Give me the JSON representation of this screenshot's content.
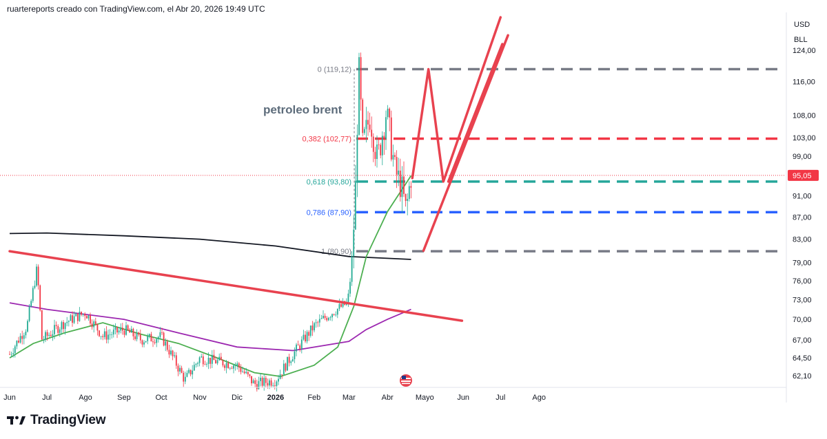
{
  "header": {
    "attribution": "ruartereports creado con TradingView.com, el Abr 20, 2026 19:49 UTC"
  },
  "footer": {
    "logo_text": "TradingView"
  },
  "colors": {
    "candle_up": "#22ab94",
    "candle_down": "#f23645",
    "annotation_red": "#e8424f",
    "price_badge": "#f23645",
    "ma_black": "#131722",
    "ma_purple": "#9c27b0",
    "ma_green": "#4caf50",
    "fib_grey": "#787b86",
    "fib_red": "#f23645",
    "fib_teal": "#26a69a",
    "fib_blue": "#2962ff"
  },
  "chart_data": {
    "type": "line",
    "symbol_title": "petroleo brent",
    "currency": "USD",
    "unit": "BLL",
    "last_price": "95,05",
    "y_axis": {
      "scale": "log",
      "ticks": [
        "124,00",
        "116,00",
        "108,00",
        "103,00",
        "99,00",
        "91,00",
        "87,00",
        "83,00",
        "79,00",
        "76,00",
        "73,00",
        "70,00",
        "67,00",
        "64,50",
        "62,10"
      ]
    },
    "x_axis": {
      "ticks": [
        "Jun",
        "Jul",
        "Ago",
        "Sep",
        "Oct",
        "Nov",
        "Dic",
        "2026",
        "Feb",
        "Mar",
        "Abr",
        "Mayo",
        "Jun",
        "Jul",
        "Ago"
      ]
    },
    "fibonacci": [
      {
        "ratio": "0",
        "price": 119.12,
        "label": "0 (119,12)",
        "color_key": "fib_grey"
      },
      {
        "ratio": "0.382",
        "price": 102.77,
        "label": "0,382 (102,77)",
        "color_key": "fib_red"
      },
      {
        "ratio": "0.618",
        "price": 93.8,
        "label": "0,618 (93,80)",
        "color_key": "fib_teal"
      },
      {
        "ratio": "0.786",
        "price": 87.9,
        "label": "0,786 (87,90)",
        "color_key": "fib_blue"
      },
      {
        "ratio": "1",
        "price": 80.9,
        "label": "1 (80,90)",
        "color_key": "fib_grey"
      }
    ],
    "price_series": [
      {
        "date": "2025-06-01",
        "price": 65.0
      },
      {
        "date": "2025-06-15",
        "price": 69.0
      },
      {
        "date": "2025-06-23",
        "price": 78.0
      },
      {
        "date": "2025-06-27",
        "price": 67.0
      },
      {
        "date": "2025-07-15",
        "price": 69.5
      },
      {
        "date": "2025-08-01",
        "price": 71.0
      },
      {
        "date": "2025-08-15",
        "price": 67.5
      },
      {
        "date": "2025-09-01",
        "price": 68.5
      },
      {
        "date": "2025-09-15",
        "price": 67.0
      },
      {
        "date": "2025-10-01",
        "price": 67.5
      },
      {
        "date": "2025-10-20",
        "price": 61.5
      },
      {
        "date": "2025-11-01",
        "price": 64.5
      },
      {
        "date": "2025-11-15",
        "price": 64.0
      },
      {
        "date": "2025-12-01",
        "price": 63.5
      },
      {
        "date": "2025-12-15",
        "price": 61.0
      },
      {
        "date": "2026-01-01",
        "price": 61.5
      },
      {
        "date": "2026-01-15",
        "price": 65.0
      },
      {
        "date": "2026-02-01",
        "price": 69.0
      },
      {
        "date": "2026-02-15",
        "price": 71.0
      },
      {
        "date": "2026-02-28",
        "price": 72.5
      },
      {
        "date": "2026-03-03",
        "price": 78.0
      },
      {
        "date": "2026-03-06",
        "price": 90.0
      },
      {
        "date": "2026-03-09",
        "price": 119.12
      },
      {
        "date": "2026-03-12",
        "price": 101.0
      },
      {
        "date": "2026-03-18",
        "price": 108.0
      },
      {
        "date": "2026-03-24",
        "price": 98.0
      },
      {
        "date": "2026-03-31",
        "price": 109.0
      },
      {
        "date": "2026-04-07",
        "price": 96.0
      },
      {
        "date": "2026-04-12",
        "price": 93.0
      },
      {
        "date": "2026-04-16",
        "price": 88.0
      },
      {
        "date": "2026-04-20",
        "price": 95.05
      }
    ],
    "moving_averages": [
      {
        "color_key": "ma_black",
        "points": [
          {
            "date": "2025-06-01",
            "price": 84.0
          },
          {
            "date": "2025-07-01",
            "price": 84.1
          },
          {
            "date": "2025-09-01",
            "price": 83.6
          },
          {
            "date": "2025-11-01",
            "price": 83.0
          },
          {
            "date": "2026-01-01",
            "price": 81.8
          },
          {
            "date": "2026-03-01",
            "price": 80.0
          },
          {
            "date": "2026-04-20",
            "price": 79.5
          }
        ]
      },
      {
        "color_key": "ma_purple",
        "points": [
          {
            "date": "2025-06-01",
            "price": 72.5
          },
          {
            "date": "2025-07-01",
            "price": 71.5
          },
          {
            "date": "2025-09-01",
            "price": 70.0
          },
          {
            "date": "2025-10-15",
            "price": 68.0
          },
          {
            "date": "2025-12-01",
            "price": 66.0
          },
          {
            "date": "2026-01-15",
            "price": 65.5
          },
          {
            "date": "2026-03-01",
            "price": 66.8
          },
          {
            "date": "2026-03-15",
            "price": 68.5
          },
          {
            "date": "2026-04-01",
            "price": 70.0
          },
          {
            "date": "2026-04-20",
            "price": 71.5
          }
        ]
      },
      {
        "color_key": "ma_green",
        "points": [
          {
            "date": "2025-06-01",
            "price": 64.5
          },
          {
            "date": "2025-06-20",
            "price": 66.5
          },
          {
            "date": "2025-07-15",
            "price": 68.0
          },
          {
            "date": "2025-08-15",
            "price": 69.5
          },
          {
            "date": "2025-09-15",
            "price": 67.8
          },
          {
            "date": "2025-10-15",
            "price": 66.5
          },
          {
            "date": "2025-11-15",
            "price": 64.5
          },
          {
            "date": "2025-12-15",
            "price": 62.5
          },
          {
            "date": "2026-01-05",
            "price": 62.0
          },
          {
            "date": "2026-02-01",
            "price": 63.5
          },
          {
            "date": "2026-02-20",
            "price": 66.0
          },
          {
            "date": "2026-03-05",
            "price": 72.0
          },
          {
            "date": "2026-03-15",
            "price": 80.0
          },
          {
            "date": "2026-04-01",
            "price": 88.0
          },
          {
            "date": "2026-04-20",
            "price": 95.0
          }
        ]
      }
    ],
    "annotations": {
      "trendline": [
        {
          "date": "2025-06-01",
          "price": 80.9
        },
        {
          "date": "2026-05-31",
          "price": 69.8
        }
      ],
      "zigzag": [
        {
          "date": "2026-04-21",
          "price": 94.5
        },
        {
          "date": "2026-05-04",
          "price": 119.12
        },
        {
          "date": "2026-05-16",
          "price": 93.8
        },
        {
          "date": "2026-07-01",
          "price": 133.0
        }
      ],
      "channel_lower": [
        {
          "date": "2026-04-30",
          "price": 81.0
        },
        {
          "date": "2026-07-07",
          "price": 128.0
        }
      ],
      "channel_upper": [
        {
          "date": "2026-05-20",
          "price": 93.8
        }
      ]
    }
  }
}
